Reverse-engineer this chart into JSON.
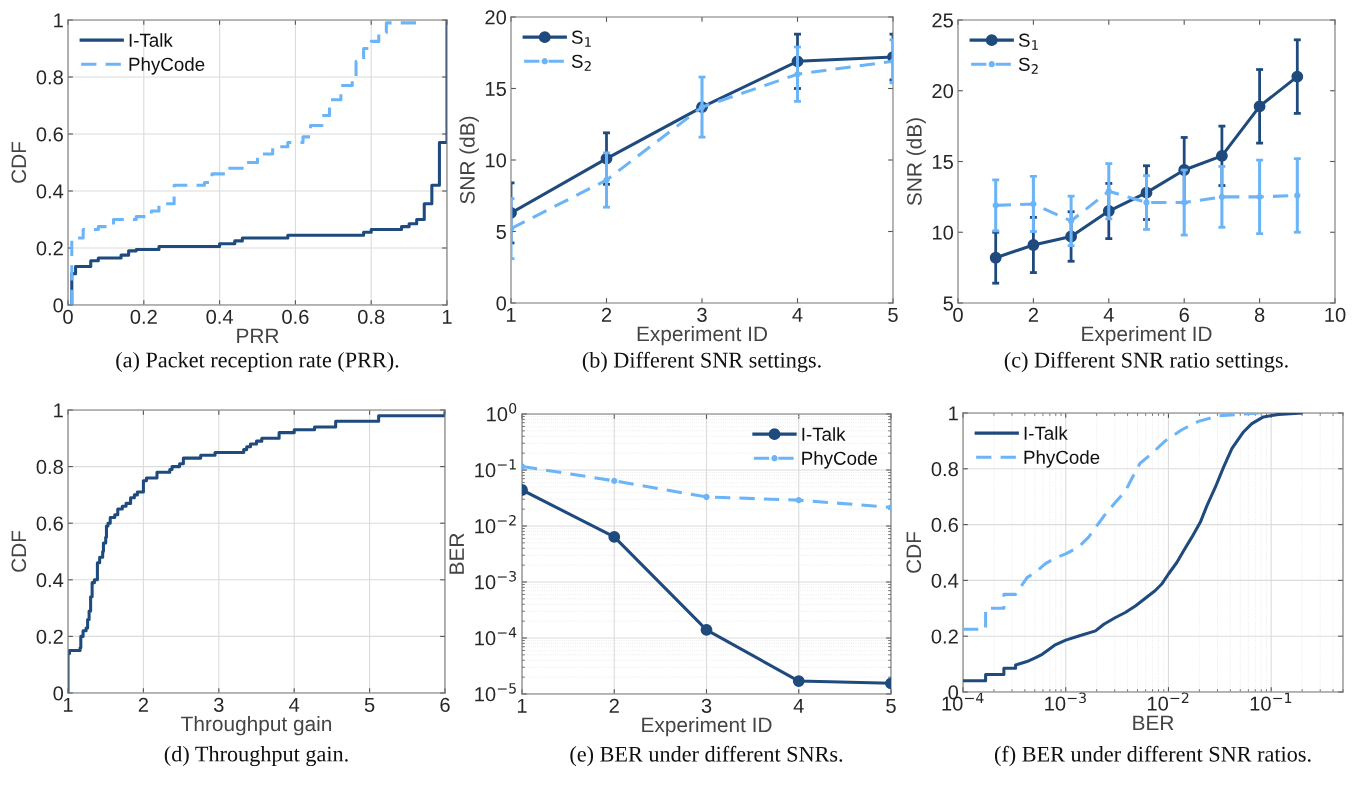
{
  "chart_data": [
    {
      "type": "step",
      "xlabel": "PRR",
      "ylabel": "CDF",
      "annotations": [
        "(a) Packet reception rate (PRR)."
      ],
      "xlim": [
        0,
        1
      ],
      "ylim": [
        0,
        1
      ],
      "xticks": [
        0,
        0.2,
        0.4,
        0.6,
        0.8,
        1
      ],
      "yticks": [
        0,
        0.2,
        0.4,
        0.6,
        0.8,
        1
      ],
      "grid": true,
      "legend": "top left",
      "series": [
        {
          "name": "I-Talk",
          "color": "#1f4a7d",
          "line_style": "solid",
          "x": [
            0.01,
            0.01,
            0.02,
            0.06,
            0.08,
            0.14,
            0.16,
            0.18,
            0.24,
            0.4,
            0.44,
            0.46,
            0.58,
            0.78,
            0.8,
            0.88,
            0.9,
            0.92,
            0.94,
            0.96,
            0.98,
            1.0
          ],
          "values": [
            0,
            0.11,
            0.135,
            0.155,
            0.165,
            0.175,
            0.19,
            0.195,
            0.205,
            0.215,
            0.225,
            0.235,
            0.245,
            0.255,
            0.265,
            0.275,
            0.285,
            0.3,
            0.355,
            0.42,
            0.57,
            1.0
          ]
        },
        {
          "name": "PhyCode",
          "color": "#6cb4f8",
          "line_style": "dashed",
          "x": [
            0.01,
            0.01,
            0.04,
            0.08,
            0.12,
            0.18,
            0.22,
            0.24,
            0.28,
            0.36,
            0.38,
            0.42,
            0.47,
            0.5,
            0.54,
            0.58,
            0.62,
            0.64,
            0.67,
            0.69,
            0.72,
            0.75,
            0.76,
            0.78,
            0.8,
            0.82,
            0.84,
            0.92
          ],
          "values": [
            0,
            0.235,
            0.265,
            0.275,
            0.3,
            0.31,
            0.33,
            0.355,
            0.42,
            0.43,
            0.46,
            0.48,
            0.5,
            0.53,
            0.555,
            0.57,
            0.59,
            0.63,
            0.665,
            0.72,
            0.77,
            0.795,
            0.855,
            0.9,
            0.925,
            0.955,
            0.99,
            1.0
          ]
        }
      ]
    },
    {
      "type": "line",
      "xlabel": "Experiment ID",
      "ylabel": "SNR (dB)",
      "annotations": [
        "(b) Different SNR settings."
      ],
      "xlim": [
        1,
        5
      ],
      "ylim": [
        0,
        20
      ],
      "xticks": [
        1,
        2,
        3,
        4,
        5
      ],
      "yticks": [
        0,
        5,
        10,
        15,
        20
      ],
      "legend": "top left",
      "series": [
        {
          "name": "S$_{1}$",
          "color": "#1f4a7d",
          "line_style": "solid",
          "marker": "circle",
          "x": [
            1,
            2,
            3,
            4,
            5
          ],
          "values": [
            6.3,
            10.1,
            13.7,
            16.9,
            17.2
          ],
          "errors": [
            2.1,
            1.8,
            null,
            1.9,
            1.6
          ]
        },
        {
          "name": "S$_{2}$",
          "color": "#6cb4f8",
          "line_style": "dashed",
          "marker": "circle",
          "x": [
            1,
            2,
            3,
            4,
            5
          ],
          "values": [
            5.2,
            8.6,
            13.7,
            16.0,
            16.9
          ],
          "errors": [
            2.1,
            1.9,
            2.1,
            1.9,
            1.5
          ]
        }
      ]
    },
    {
      "type": "line",
      "xlabel": "Experiment ID",
      "ylabel": "SNR (dB)",
      "annotations": [
        "(c) Different SNR ratio settings."
      ],
      "xlim": [
        0,
        10
      ],
      "ylim": [
        5,
        25
      ],
      "xticks": [
        0,
        2,
        4,
        6,
        8,
        10
      ],
      "yticks": [
        5,
        10,
        15,
        20,
        25
      ],
      "legend": "top left",
      "series": [
        {
          "name": "S$_{1}$",
          "color": "#1f4a7d",
          "line_style": "solid",
          "marker": "circle",
          "x": [
            1,
            2,
            3,
            4,
            5,
            6,
            7,
            8,
            9
          ],
          "values": [
            8.2,
            9.1,
            9.7,
            11.5,
            12.8,
            14.4,
            15.4,
            18.9,
            21.0
          ],
          "errors": [
            1.8,
            1.95,
            1.75,
            1.95,
            1.9,
            2.3,
            2.1,
            2.6,
            2.6
          ]
        },
        {
          "name": "S$_{2}$",
          "color": "#6cb4f8",
          "line_style": "dashed",
          "marker": "circle",
          "x": [
            1,
            2,
            3,
            4,
            5,
            6,
            7,
            8,
            9
          ],
          "values": [
            11.9,
            12.0,
            10.8,
            12.9,
            12.1,
            12.1,
            12.5,
            12.5,
            12.6
          ],
          "errors": [
            1.8,
            1.95,
            1.75,
            1.95,
            1.9,
            2.3,
            2.15,
            2.6,
            2.6
          ]
        }
      ]
    },
    {
      "type": "step",
      "xlabel": "Throughput gain",
      "ylabel": "CDF",
      "annotations": [
        "(d) Throughput gain."
      ],
      "xlim": [
        1,
        6
      ],
      "ylim": [
        0,
        1
      ],
      "xticks": [
        1,
        2,
        3,
        4,
        5,
        6
      ],
      "yticks": [
        0,
        0.2,
        0.4,
        0.6,
        0.8,
        1
      ],
      "grid": true,
      "series": [
        {
          "color": "#1f4a7d",
          "line_style": "solid",
          "x": [
            1.0,
            1.0,
            1.02,
            1.16,
            1.17,
            1.2,
            1.24,
            1.26,
            1.28,
            1.3,
            1.32,
            1.35,
            1.39,
            1.42,
            1.46,
            1.47,
            1.5,
            1.51,
            1.53,
            1.56,
            1.62,
            1.66,
            1.72,
            1.77,
            1.83,
            1.88,
            1.92,
            2.0,
            2.04,
            2.18,
            2.35,
            2.38,
            2.48,
            2.53,
            2.76,
            2.95,
            3.33,
            3.37,
            3.42,
            3.5,
            3.57,
            3.8,
            4.0,
            4.27,
            4.55,
            5.12,
            6.0
          ],
          "values": [
            0,
            0.14,
            0.15,
            0.16,
            0.2,
            0.22,
            0.23,
            0.26,
            0.29,
            0.34,
            0.39,
            0.4,
            0.46,
            0.48,
            0.5,
            0.53,
            0.55,
            0.59,
            0.6,
            0.62,
            0.63,
            0.65,
            0.66,
            0.67,
            0.69,
            0.7,
            0.71,
            0.75,
            0.76,
            0.78,
            0.79,
            0.8,
            0.81,
            0.83,
            0.84,
            0.85,
            0.86,
            0.87,
            0.88,
            0.89,
            0.9,
            0.92,
            0.93,
            0.94,
            0.96,
            0.98,
            0.99
          ]
        }
      ]
    },
    {
      "type": "line",
      "xlabel": "Experiment ID",
      "ylabel": "BER",
      "annotations": [
        "(e) BER under different SNRs."
      ],
      "log": "y",
      "xlim": [
        1,
        5
      ],
      "ylim": [
        1e-05,
        1
      ],
      "xticks": [
        1,
        2,
        3,
        4,
        5
      ],
      "yticks": [
        {
          "value": 1e-05,
          "label": "10$^{−5}$"
        },
        {
          "value": 0.0001,
          "label": "10$^{−4}$"
        },
        {
          "value": 0.001,
          "label": "10$^{−3}$"
        },
        {
          "value": 0.01,
          "label": "10$^{−2}$"
        },
        {
          "value": 0.1,
          "label": "10$^{−1}$"
        },
        {
          "value": 1,
          "label": "10$^{0}$"
        }
      ],
      "grid": true,
      "legend": "top right",
      "series": [
        {
          "name": "I-Talk",
          "color": "#1f4a7d",
          "line_style": "solid",
          "marker": "circle",
          "x": [
            1,
            2,
            3,
            4,
            5
          ],
          "values": [
            0.044,
            0.0064,
            0.00014,
            1.7e-05,
            1.55e-05
          ]
        },
        {
          "name": "PhyCode",
          "color": "#6cb4f8",
          "line_style": "dashed",
          "marker": "circle",
          "x": [
            1,
            2,
            3,
            4,
            5
          ],
          "values": [
            0.116,
            0.064,
            0.033,
            0.029,
            0.0215
          ]
        }
      ]
    },
    {
      "type": "line",
      "xlabel": "BER",
      "ylabel": "CDF",
      "annotations": [
        "(f) BER under different SNR ratios."
      ],
      "log": "x",
      "xlim": [
        0.0001,
        0.5
      ],
      "ylim": [
        0,
        1
      ],
      "xticks": [
        {
          "value": 0.0001,
          "label": "10$^{−4}$"
        },
        {
          "value": 0.001,
          "label": "10$^{−3}$"
        },
        {
          "value": 0.01,
          "label": "10$^{−2}$"
        },
        {
          "value": 0.1,
          "label": "10$^{−1}$"
        }
      ],
      "yticks": [
        0,
        0.2,
        0.4,
        0.6,
        0.8,
        1
      ],
      "grid": true,
      "legend": "top left",
      "series": [
        {
          "name": "I-Talk",
          "color": "#1f4a7d",
          "line_style": "solid",
          "x": [
            0.0001,
            0.000166,
            0.000166,
            0.00025,
            0.00025,
            0.000325,
            0.000325,
            0.00042,
            0.00051,
            0.00059,
            0.00069,
            0.00079,
            0.001,
            0.00134,
            0.00195,
            0.00235,
            0.00305,
            0.0038,
            0.0048,
            0.006,
            0.0074,
            0.0086,
            0.01,
            0.0121,
            0.0141,
            0.0169,
            0.0204,
            0.0237,
            0.0286,
            0.0344,
            0.0414,
            0.0537,
            0.0648,
            0.084,
            0.118,
            0.195
          ],
          "values": [
            0.04,
            0.04,
            0.063,
            0.063,
            0.085,
            0.085,
            0.097,
            0.109,
            0.123,
            0.135,
            0.153,
            0.169,
            0.186,
            0.201,
            0.219,
            0.243,
            0.267,
            0.285,
            0.309,
            0.337,
            0.363,
            0.387,
            0.423,
            0.465,
            0.507,
            0.555,
            0.608,
            0.668,
            0.734,
            0.806,
            0.872,
            0.932,
            0.962,
            0.986,
            0.995,
            1.0
          ]
        },
        {
          "name": "PhyCode",
          "color": "#6cb4f8",
          "line_style": "dashed",
          "x": [
            0.0001,
            0.000166,
            0.000166,
            0.00025,
            0.00025,
            0.000325,
            0.00042,
            0.00051,
            0.000635,
            0.00079,
            0.001,
            0.00134,
            0.00167,
            0.002,
            0.00252,
            0.00305,
            0.0038,
            0.0044,
            0.0053,
            0.0069,
            0.0093,
            0.0135,
            0.0196,
            0.0307,
            0.0483,
            0.0779
          ],
          "values": [
            0.225,
            0.225,
            0.3,
            0.3,
            0.35,
            0.35,
            0.41,
            0.43,
            0.46,
            0.48,
            0.495,
            0.52,
            0.555,
            0.595,
            0.645,
            0.68,
            0.72,
            0.765,
            0.82,
            0.855,
            0.9,
            0.94,
            0.97,
            0.99,
            0.995,
            1.0
          ]
        }
      ]
    }
  ]
}
